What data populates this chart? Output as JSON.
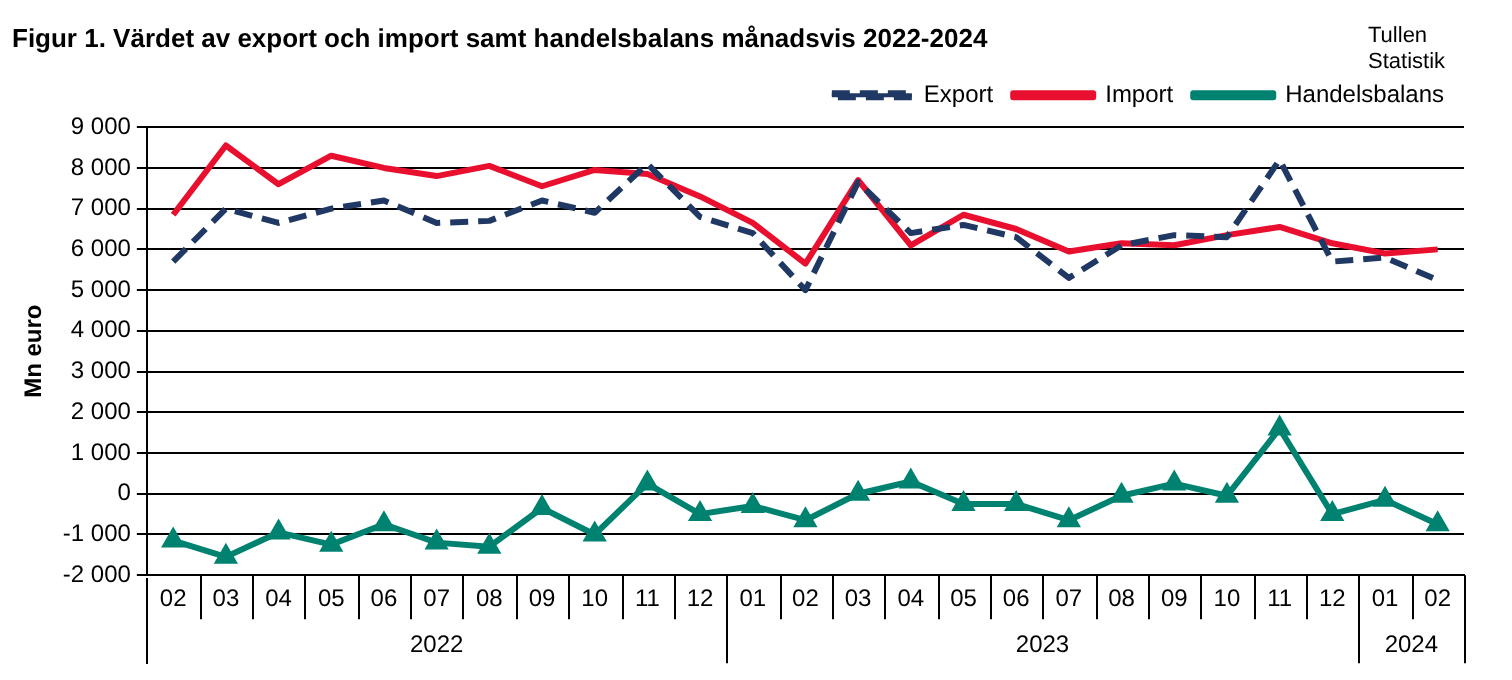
{
  "chart_data": {
    "type": "line",
    "title": "Figur 1. Värdet av export och import samt handelsbalans månadsvis 2022-2024",
    "ylabel": "Mn euro",
    "categories": [
      "02",
      "03",
      "04",
      "05",
      "06",
      "07",
      "08",
      "09",
      "10",
      "11",
      "12",
      "01",
      "02",
      "03",
      "04",
      "05",
      "06",
      "07",
      "08",
      "09",
      "10",
      "11",
      "12",
      "01",
      "02"
    ],
    "series": [
      {
        "name": "Export",
        "color": "#1f3864",
        "line_style": "dashed",
        "marker": "none",
        "values": [
          5700,
          7000,
          6650,
          7000,
          7200,
          6650,
          6700,
          7200,
          6900,
          8100,
          6800,
          6400,
          5000,
          7650,
          6400,
          6600,
          6300,
          5300,
          6100,
          6350,
          6300,
          8200,
          5700,
          5800,
          5250
        ]
      },
      {
        "name": "Import",
        "color": "#e8102e",
        "line_style": "solid",
        "marker": "none",
        "values": [
          6850,
          8550,
          7600,
          8300,
          8000,
          7800,
          8050,
          7550,
          7950,
          7850,
          7300,
          6650,
          5650,
          7700,
          6100,
          6850,
          6500,
          5950,
          6150,
          6100,
          6350,
          6550,
          6150,
          5900,
          6000
        ]
      },
      {
        "name": "Handelsbalans",
        "color": "#008270",
        "line_style": "solid",
        "marker": "triangle",
        "values": [
          -1150,
          -1550,
          -950,
          -1250,
          -750,
          -1200,
          -1300,
          -350,
          -1000,
          250,
          -500,
          -300,
          -650,
          0,
          300,
          -250,
          -250,
          -650,
          -50,
          250,
          -50,
          1600,
          -500,
          -150,
          -750
        ]
      }
    ],
    "ylim": [
      -2000,
      9000
    ],
    "yticks": [
      -2000,
      -1000,
      0,
      1000,
      2000,
      3000,
      4000,
      5000,
      6000,
      7000,
      8000,
      9000
    ],
    "grid": "y",
    "legend": "top right",
    "annotations": [
      "2022",
      "2023",
      "2024",
      "Tullen Statistik"
    ]
  }
}
